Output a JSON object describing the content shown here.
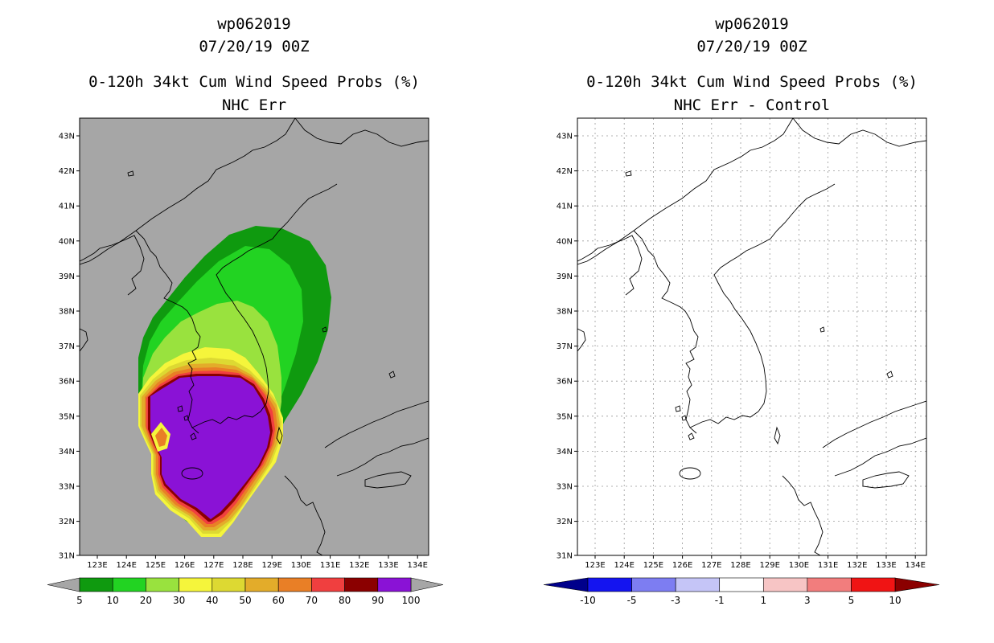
{
  "left": {
    "title_line1": "wp062019",
    "title_line2": "07/20/19 00Z",
    "title_line3": "0-120h 34kt Cum Wind Speed Probs (%)",
    "title_line4": "NHC Err",
    "colorbar": {
      "colors": [
        "#0f9a0f",
        "#22d322",
        "#99e23e",
        "#f5f53b",
        "#ddd932",
        "#e3ac2a",
        "#e97f26",
        "#f03f3f",
        "#8b0000",
        "#8a12d6"
      ],
      "labels": [
        "5",
        "10",
        "20",
        "30",
        "40",
        "50",
        "60",
        "70",
        "80",
        "90",
        "100"
      ],
      "under_color": "#a6a6a6",
      "over_color": "#a6a6a6"
    }
  },
  "right": {
    "title_line1": "wp062019",
    "title_line2": "07/20/19 00Z",
    "title_line3": "0-120h 34kt Cum Wind Speed Probs (%)",
    "title_line4": "NHC Err - Control",
    "colorbar": {
      "colors": [
        "#1414f0",
        "#7d7df2",
        "#c5c5f7",
        "#ffffff",
        "#f7c5c5",
        "#f27d7d",
        "#f01414"
      ],
      "labels": [
        "-10",
        "-5",
        "-3",
        "-1",
        "1",
        "3",
        "5",
        "10"
      ],
      "under_color": "#00008b",
      "over_color": "#8b0000"
    }
  },
  "lat_labels": [
    "43N",
    "42N",
    "41N",
    "40N",
    "39N",
    "38N",
    "37N",
    "36N",
    "35N",
    "34N",
    "33N",
    "32N",
    "31N"
  ],
  "lon_labels": [
    "123E",
    "124E",
    "125E",
    "126E",
    "127E",
    "128E",
    "129E",
    "130E",
    "131E",
    "132E",
    "133E",
    "134E"
  ]
}
